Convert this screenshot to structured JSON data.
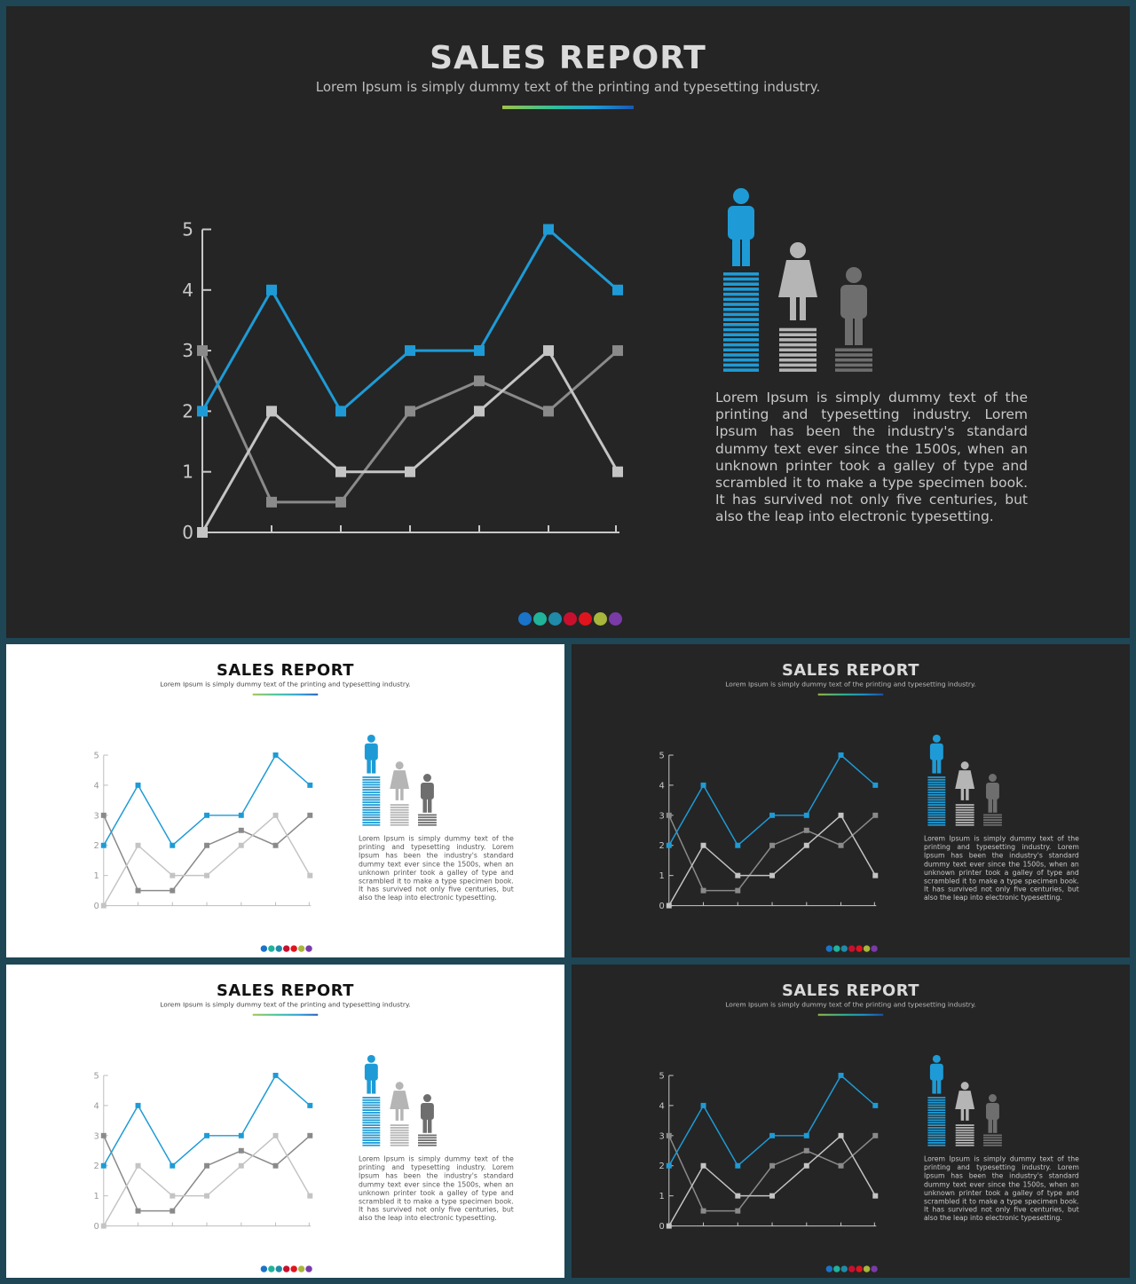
{
  "slide": {
    "title": "SALES REPORT",
    "subtitle": "Lorem Ipsum is simply dummy text of the printing and typesetting industry.",
    "body": "Lorem Ipsum is simply dummy text of the printing and typesetting industry. Lorem Ipsum has been the industry's standard dummy text ever since the 1500s, when an unknown printer took a galley of type and scrambled it to make a type specimen book. It has survived not only five centuries, but also the leap into electronic typesetting."
  },
  "colors": {
    "series": [
      "#1e9bd6",
      "#8a8a8a",
      "#c4c4c4"
    ],
    "figure_male_blue": "#1e9bd6",
    "figure_female_gray": "#b5b5b5",
    "figure_male_dark": "#6e6e6e",
    "dots": [
      "#1a73c9",
      "#20b39a",
      "#1f8ba8",
      "#c8102e",
      "#e0141e",
      "#a8b63c",
      "#7a3aa8"
    ]
  },
  "icons": [
    "male-person-icon",
    "female-person-icon",
    "male-person-icon"
  ],
  "chart_data": {
    "type": "line",
    "categories": [
      "",
      "",
      "",
      "",
      "",
      "",
      ""
    ],
    "ylim": [
      0,
      5
    ],
    "yticks": [
      "0",
      "1",
      "2",
      "3",
      "4",
      "5"
    ],
    "series": [
      {
        "values": [
          2,
          4,
          2,
          3,
          3,
          5,
          4
        ]
      },
      {
        "values": [
          3,
          0.5,
          0.5,
          2,
          2.5,
          2,
          3
        ]
      },
      {
        "values": [
          0,
          2,
          1,
          1,
          2,
          3,
          1
        ]
      }
    ],
    "grid": false,
    "legend": "none"
  },
  "thumbnails": [
    {
      "theme": "light"
    },
    {
      "theme": "dark"
    },
    {
      "theme": "light"
    },
    {
      "theme": "dark"
    }
  ]
}
